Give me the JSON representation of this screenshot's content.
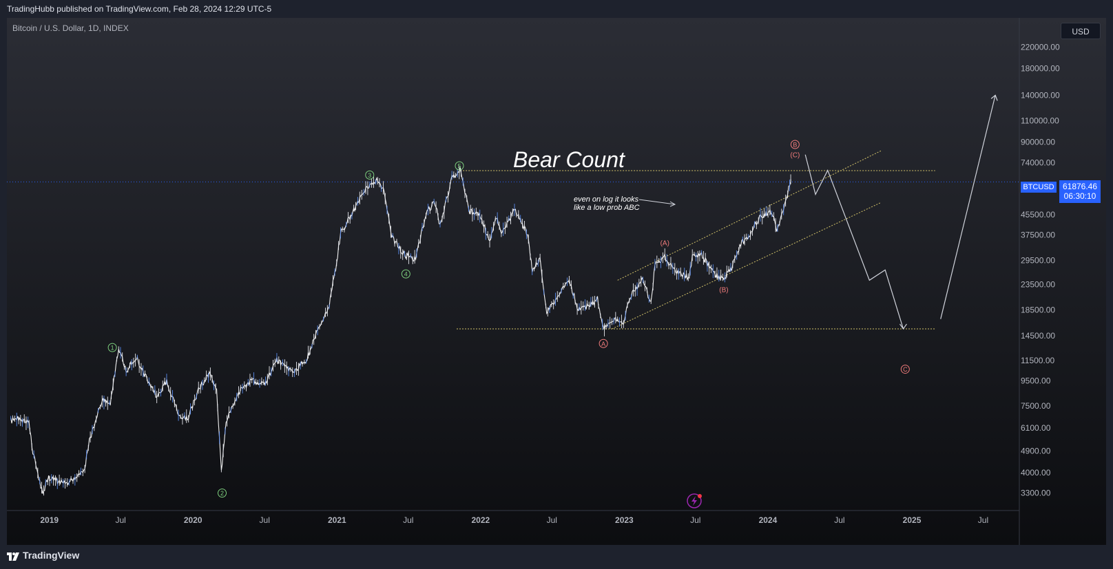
{
  "header": {
    "published": "TradingHubb published on TradingView.com, Feb 28, 2024 12:29 UTC-5"
  },
  "symbol": {
    "title": "Bitcoin / U.S. Dollar, 1D, INDEX",
    "ticker": "BTCUSD"
  },
  "currency_button": "USD",
  "price_label": {
    "price": "61876.46",
    "countdown": "06:30:10"
  },
  "annotations": {
    "bear_title": "Bear Count",
    "note_line1": "even on log it looks",
    "note_line2": "like a low prob ABC"
  },
  "footer": {
    "brand": "TradingView"
  },
  "colors": {
    "background_top": "#2b2d35",
    "background_bottom": "#0c0d10",
    "candles": "#ffffff",
    "price_line": "#2962ff",
    "green_wave": "#7ed07e",
    "red_wave": "#f27c7c",
    "yellow_line": "#d4c46a",
    "accent": "#2962ff"
  },
  "chart_data": {
    "type": "line",
    "title": "Bitcoin / U.S. Dollar, 1D, INDEX",
    "y_scale": "log",
    "ylim": [
      2800,
      290000
    ],
    "y_ticks": [
      "220000.00",
      "180000.00",
      "140000.00",
      "110000.00",
      "90000.00",
      "74000.00",
      "45500.00",
      "37500.00",
      "29500.00",
      "23500.00",
      "18500.00",
      "14500.00",
      "11500.00",
      "9500.00",
      "7500.00",
      "6100.00",
      "4900.00",
      "4000.00",
      "3300.00"
    ],
    "x_ticks": [
      "2019",
      "Jul",
      "2020",
      "Jul",
      "2021",
      "Jul",
      "2022",
      "Jul",
      "2023",
      "Jul",
      "2024",
      "Jul",
      "2025",
      "Jul"
    ],
    "series": [
      {
        "name": "BTCUSD",
        "points": [
          [
            "2018-09-25",
            6500
          ],
          [
            "2018-10-15",
            6700
          ],
          [
            "2018-11-10",
            6400
          ],
          [
            "2018-11-20",
            4800
          ],
          [
            "2018-12-15",
            3300
          ],
          [
            "2018-12-30",
            3800
          ],
          [
            "2019-02-15",
            3600
          ],
          [
            "2019-04-01",
            4100
          ],
          [
            "2019-04-10",
            5200
          ],
          [
            "2019-05-15",
            8000
          ],
          [
            "2019-06-05",
            7800
          ],
          [
            "2019-06-26",
            13000
          ],
          [
            "2019-07-15",
            10500
          ],
          [
            "2019-08-10",
            11800
          ],
          [
            "2019-09-01",
            10000
          ],
          [
            "2019-10-01",
            8200
          ],
          [
            "2019-10-26",
            9500
          ],
          [
            "2019-11-25",
            7000
          ],
          [
            "2019-12-18",
            6600
          ],
          [
            "2020-01-15",
            8800
          ],
          [
            "2020-02-14",
            10300
          ],
          [
            "2020-03-01",
            8600
          ],
          [
            "2020-03-13",
            4000
          ],
          [
            "2020-03-25",
            6500
          ],
          [
            "2020-05-01",
            8800
          ],
          [
            "2020-06-01",
            9500
          ],
          [
            "2020-07-01",
            9200
          ],
          [
            "2020-08-01",
            11500
          ],
          [
            "2020-09-10",
            10300
          ],
          [
            "2020-10-15",
            11500
          ],
          [
            "2020-11-15",
            16000
          ],
          [
            "2020-12-10",
            18500
          ],
          [
            "2020-12-31",
            29000
          ],
          [
            "2021-01-10",
            38000
          ],
          [
            "2021-02-15",
            48000
          ],
          [
            "2021-03-15",
            58000
          ],
          [
            "2021-04-14",
            63500
          ],
          [
            "2021-05-01",
            57000
          ],
          [
            "2021-05-20",
            37000
          ],
          [
            "2021-06-22",
            31000
          ],
          [
            "2021-07-20",
            30000
          ],
          [
            "2021-08-15",
            46000
          ],
          [
            "2021-09-07",
            51000
          ],
          [
            "2021-09-20",
            41000
          ],
          [
            "2021-10-20",
            64000
          ],
          [
            "2021-11-10",
            68800
          ],
          [
            "2021-12-04",
            47000
          ],
          [
            "2021-12-30",
            46000
          ],
          [
            "2022-01-24",
            35000
          ],
          [
            "2022-02-10",
            44000
          ],
          [
            "2022-02-25",
            38000
          ],
          [
            "2022-03-28",
            47500
          ],
          [
            "2022-04-30",
            38000
          ],
          [
            "2022-05-12",
            27000
          ],
          [
            "2022-06-01",
            30000
          ],
          [
            "2022-06-18",
            18000
          ],
          [
            "2022-07-15",
            21000
          ],
          [
            "2022-08-14",
            24500
          ],
          [
            "2022-09-06",
            18600
          ],
          [
            "2022-10-01",
            19200
          ],
          [
            "2022-10-25",
            20500
          ],
          [
            "2022-11-09",
            15600
          ],
          [
            "2022-12-10",
            17000
          ],
          [
            "2022-12-30",
            16500
          ],
          [
            "2023-01-14",
            20800
          ],
          [
            "2023-02-15",
            24500
          ],
          [
            "2023-03-10",
            20000
          ],
          [
            "2023-03-20",
            28000
          ],
          [
            "2023-04-14",
            30500
          ],
          [
            "2023-05-12",
            26300
          ],
          [
            "2023-06-15",
            25000
          ],
          [
            "2023-06-23",
            30500
          ],
          [
            "2023-07-14",
            31500
          ],
          [
            "2023-08-17",
            26000
          ],
          [
            "2023-09-11",
            25000
          ],
          [
            "2023-10-01",
            27500
          ],
          [
            "2023-10-24",
            34500
          ],
          [
            "2023-11-15",
            37500
          ],
          [
            "2023-12-08",
            44000
          ],
          [
            "2024-01-11",
            47000
          ],
          [
            "2024-01-23",
            39000
          ],
          [
            "2024-02-15",
            52000
          ],
          [
            "2024-02-28",
            63000
          ],
          [
            "2024-02-28",
            61876
          ]
        ]
      }
    ],
    "wave_labels": [
      {
        "text": "1",
        "group": "primary",
        "date": "2019-06-10",
        "price": 13000
      },
      {
        "text": "2",
        "group": "primary",
        "date": "2020-03-15",
        "price": 3300
      },
      {
        "text": "3",
        "group": "primary",
        "date": "2021-03-25",
        "price": 66000
      },
      {
        "text": "4",
        "group": "primary",
        "date": "2021-06-25",
        "price": 26000
      },
      {
        "text": "5",
        "group": "primary",
        "date": "2021-11-08",
        "price": 72000
      },
      {
        "text": "A",
        "group": "correction",
        "date": "2022-11-09",
        "price": 13500
      },
      {
        "text": "B",
        "group": "correction",
        "date": "2024-03-10",
        "price": 88000
      },
      {
        "text": "C",
        "group": "correction",
        "date": "2024-12-15",
        "price": 10600
      },
      {
        "text": "(A)",
        "group": "minor",
        "date": "2023-04-14",
        "price": 35000
      },
      {
        "text": "(B)",
        "group": "minor",
        "date": "2023-09-11",
        "price": 22500
      },
      {
        "text": "(C)",
        "group": "minor",
        "date": "2024-03-10",
        "price": 80000
      }
    ]
  }
}
